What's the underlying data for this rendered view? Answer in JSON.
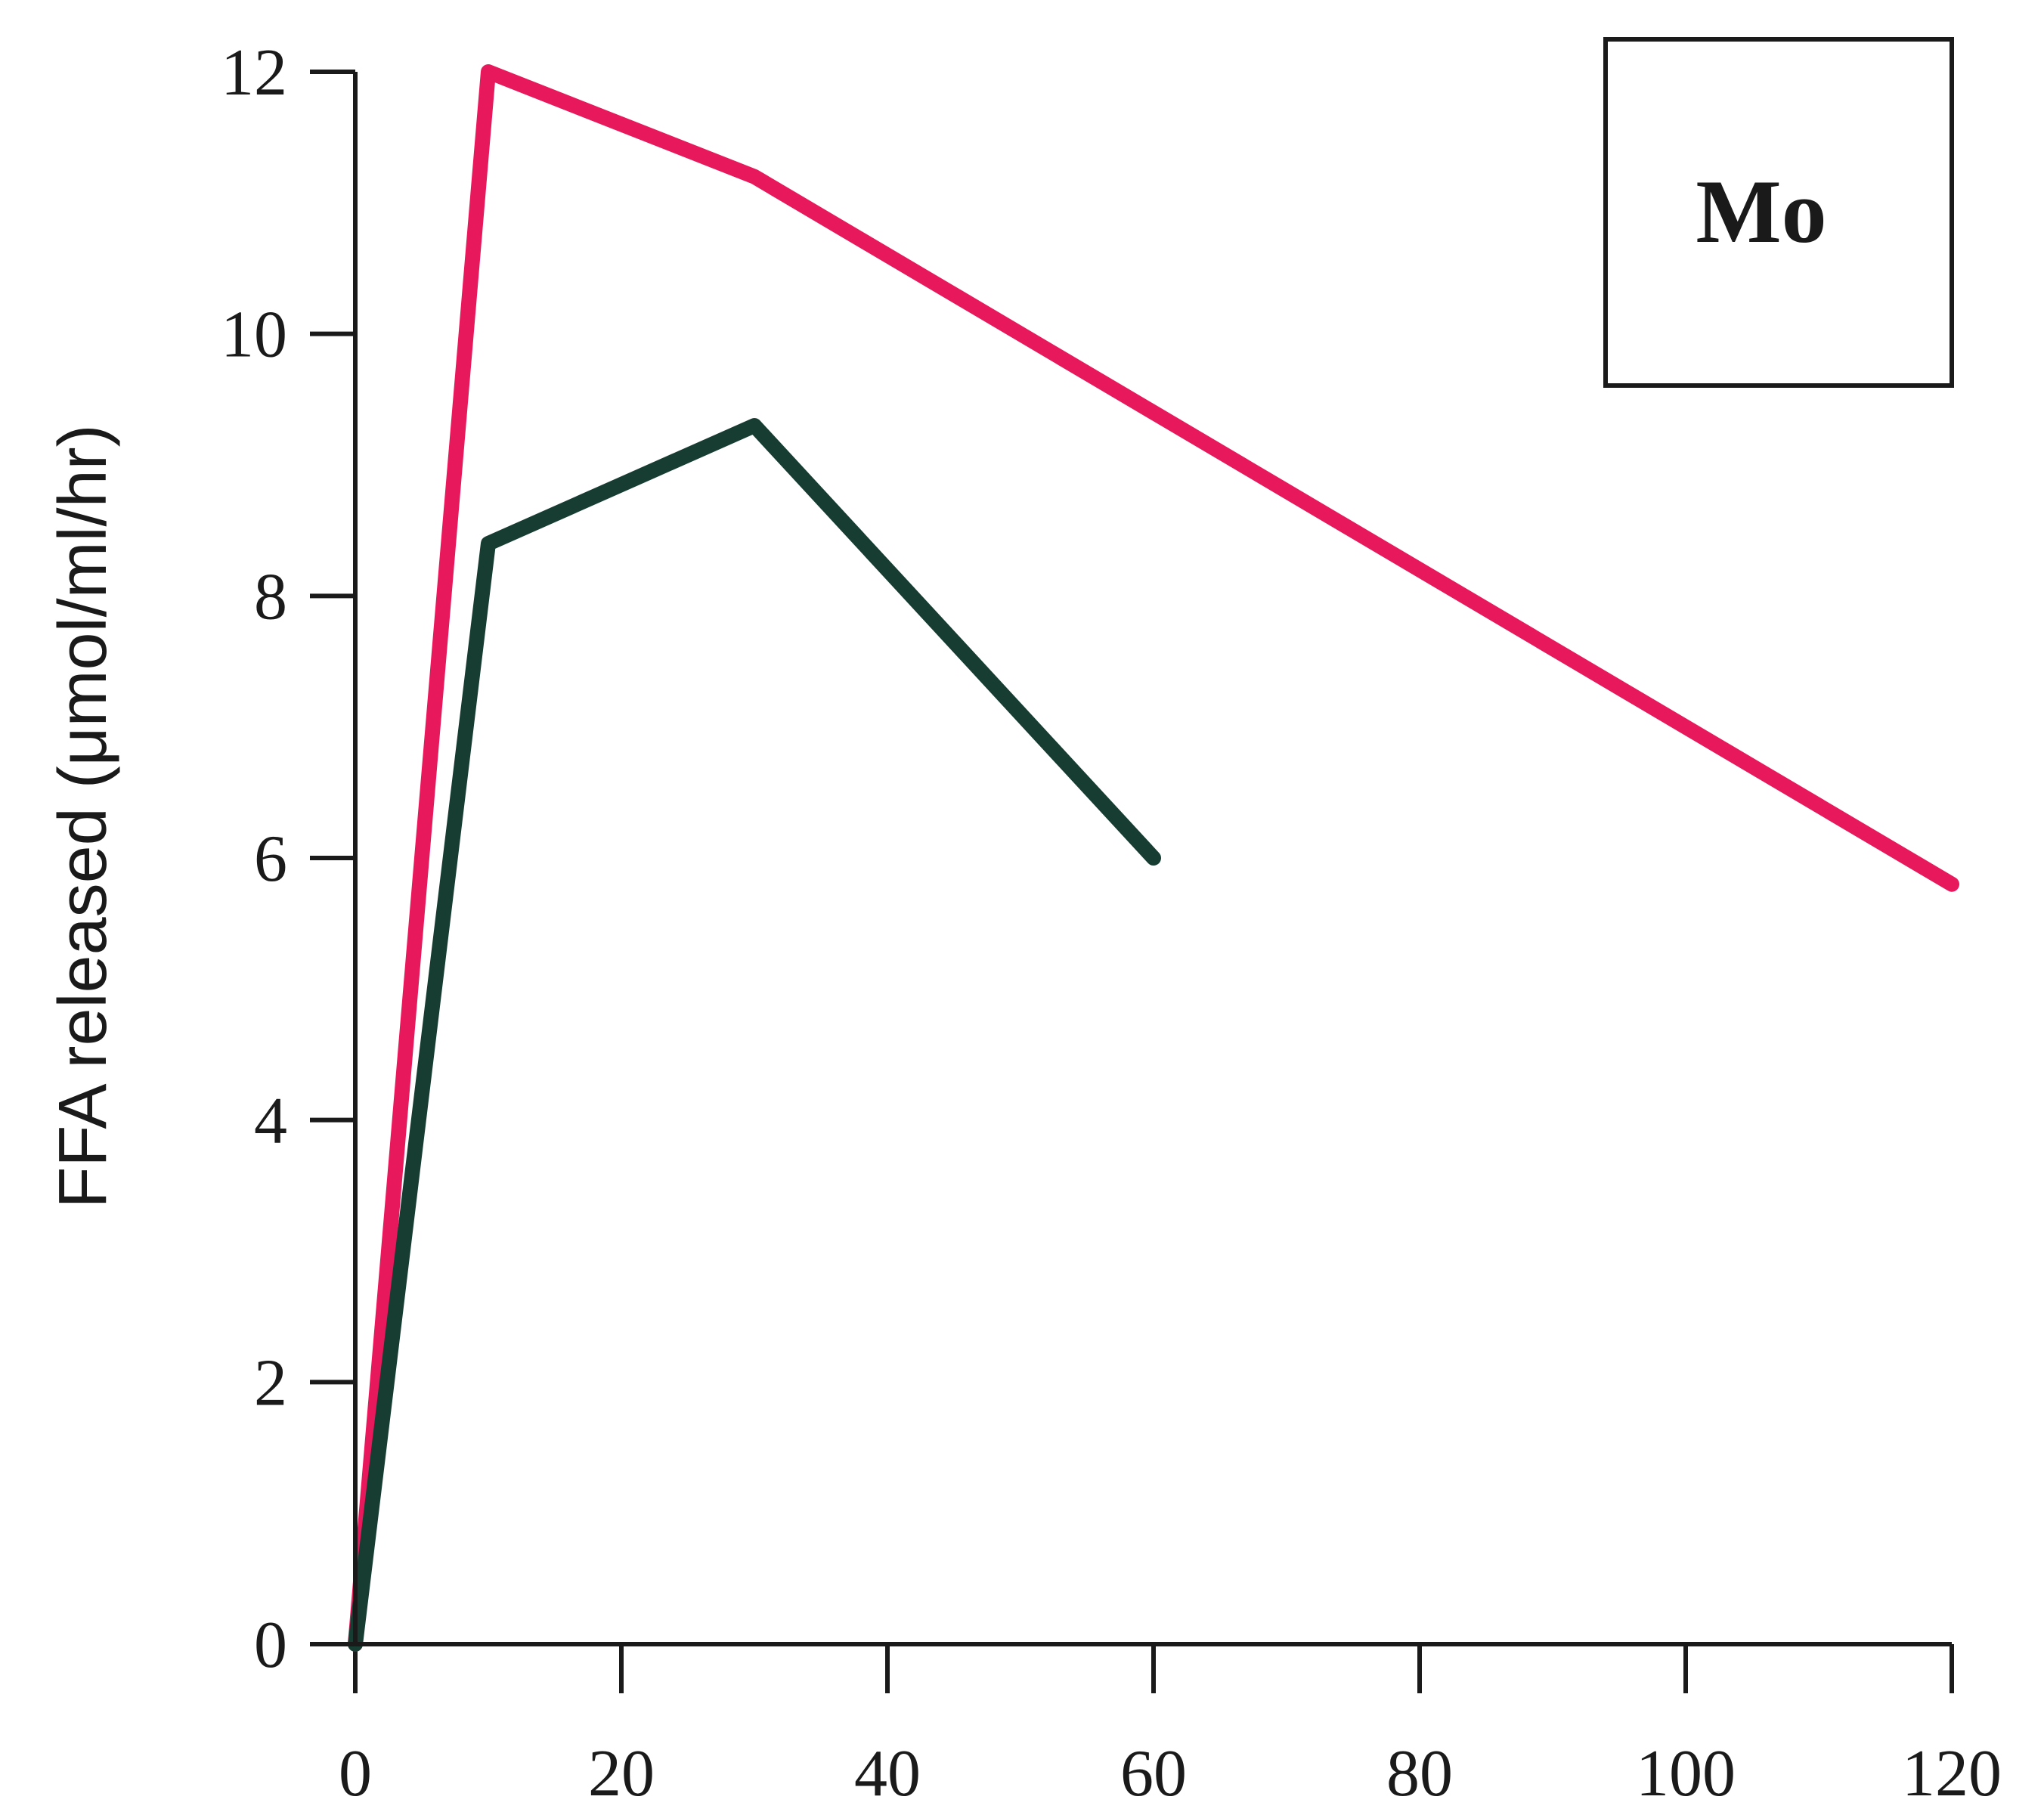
{
  "chart_data": {
    "type": "line",
    "title": "",
    "xlabel": "",
    "ylabel": "FFA released (μmol/ml/hr)",
    "xlim": [
      0,
      120
    ],
    "ylim": [
      0,
      12
    ],
    "xticks": [
      0,
      20,
      40,
      60,
      80,
      100,
      120
    ],
    "yticks": [
      0,
      2,
      4,
      6,
      8,
      10,
      12
    ],
    "grid": false,
    "legend": {
      "placement": "top-right",
      "label": "Mo"
    },
    "series": [
      {
        "color": "#e8185c",
        "x": [
          0,
          10,
          30,
          120
        ],
        "y": [
          0,
          12,
          11.2,
          5.8
        ]
      },
      {
        "color": "#173d33",
        "x": [
          0,
          10,
          30,
          60
        ],
        "y": [
          0,
          8.4,
          9.3,
          6.0
        ]
      }
    ]
  }
}
